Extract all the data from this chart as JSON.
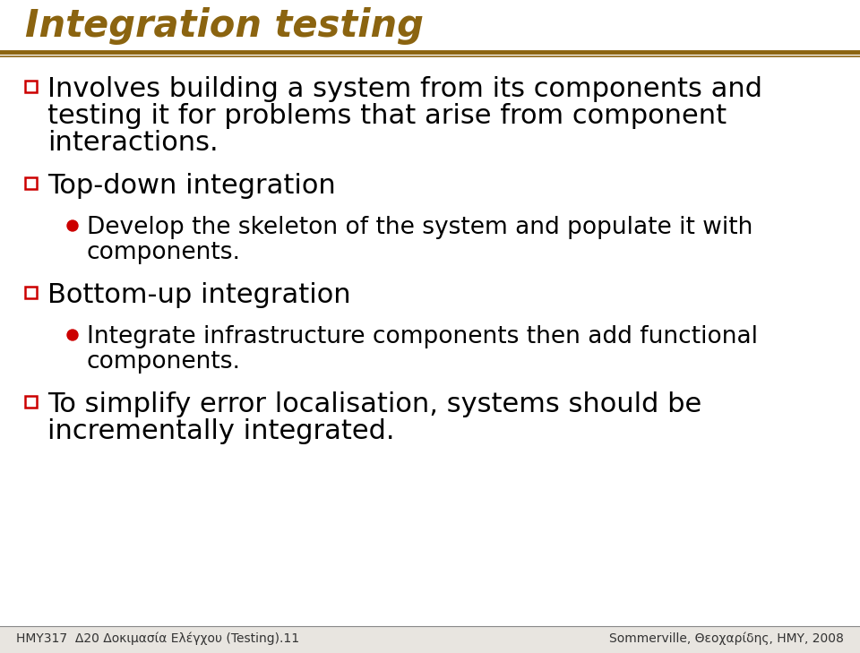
{
  "title": "Integration testing",
  "title_color": "#8B6410",
  "title_fontsize": 30,
  "separator_color": "#8B6410",
  "background_color": "#F0EEEA",
  "content_bg": "#FFFFFF",
  "bullet_square_color": "#CC0000",
  "bullet_circle_color": "#CC0000",
  "text_color": "#000000",
  "content": [
    {
      "type": "bullet_square",
      "text": "Involves building a system from its components and\ntesting it for problems that arise from component\ninteractions."
    },
    {
      "type": "bullet_square",
      "text": "Top-down integration"
    },
    {
      "type": "bullet_circle",
      "text": "Develop the skeleton of the system and populate it with\ncomponents."
    },
    {
      "type": "bullet_square",
      "text": "Bottom-up integration"
    },
    {
      "type": "bullet_circle",
      "text": "Integrate infrastructure components then add functional\ncomponents."
    },
    {
      "type": "bullet_square",
      "text": "To simplify error localisation, systems should be\nincrementally integrated."
    }
  ],
  "footer_left": "HMY317  Δ20 Δοκιμασία Ελέγχου (Testing).11",
  "footer_right": "Sommerville, Θεοχαρίδης, HMY, 2008",
  "footer_fontsize": 10,
  "main_fontsize": 22,
  "sub_fontsize": 19
}
